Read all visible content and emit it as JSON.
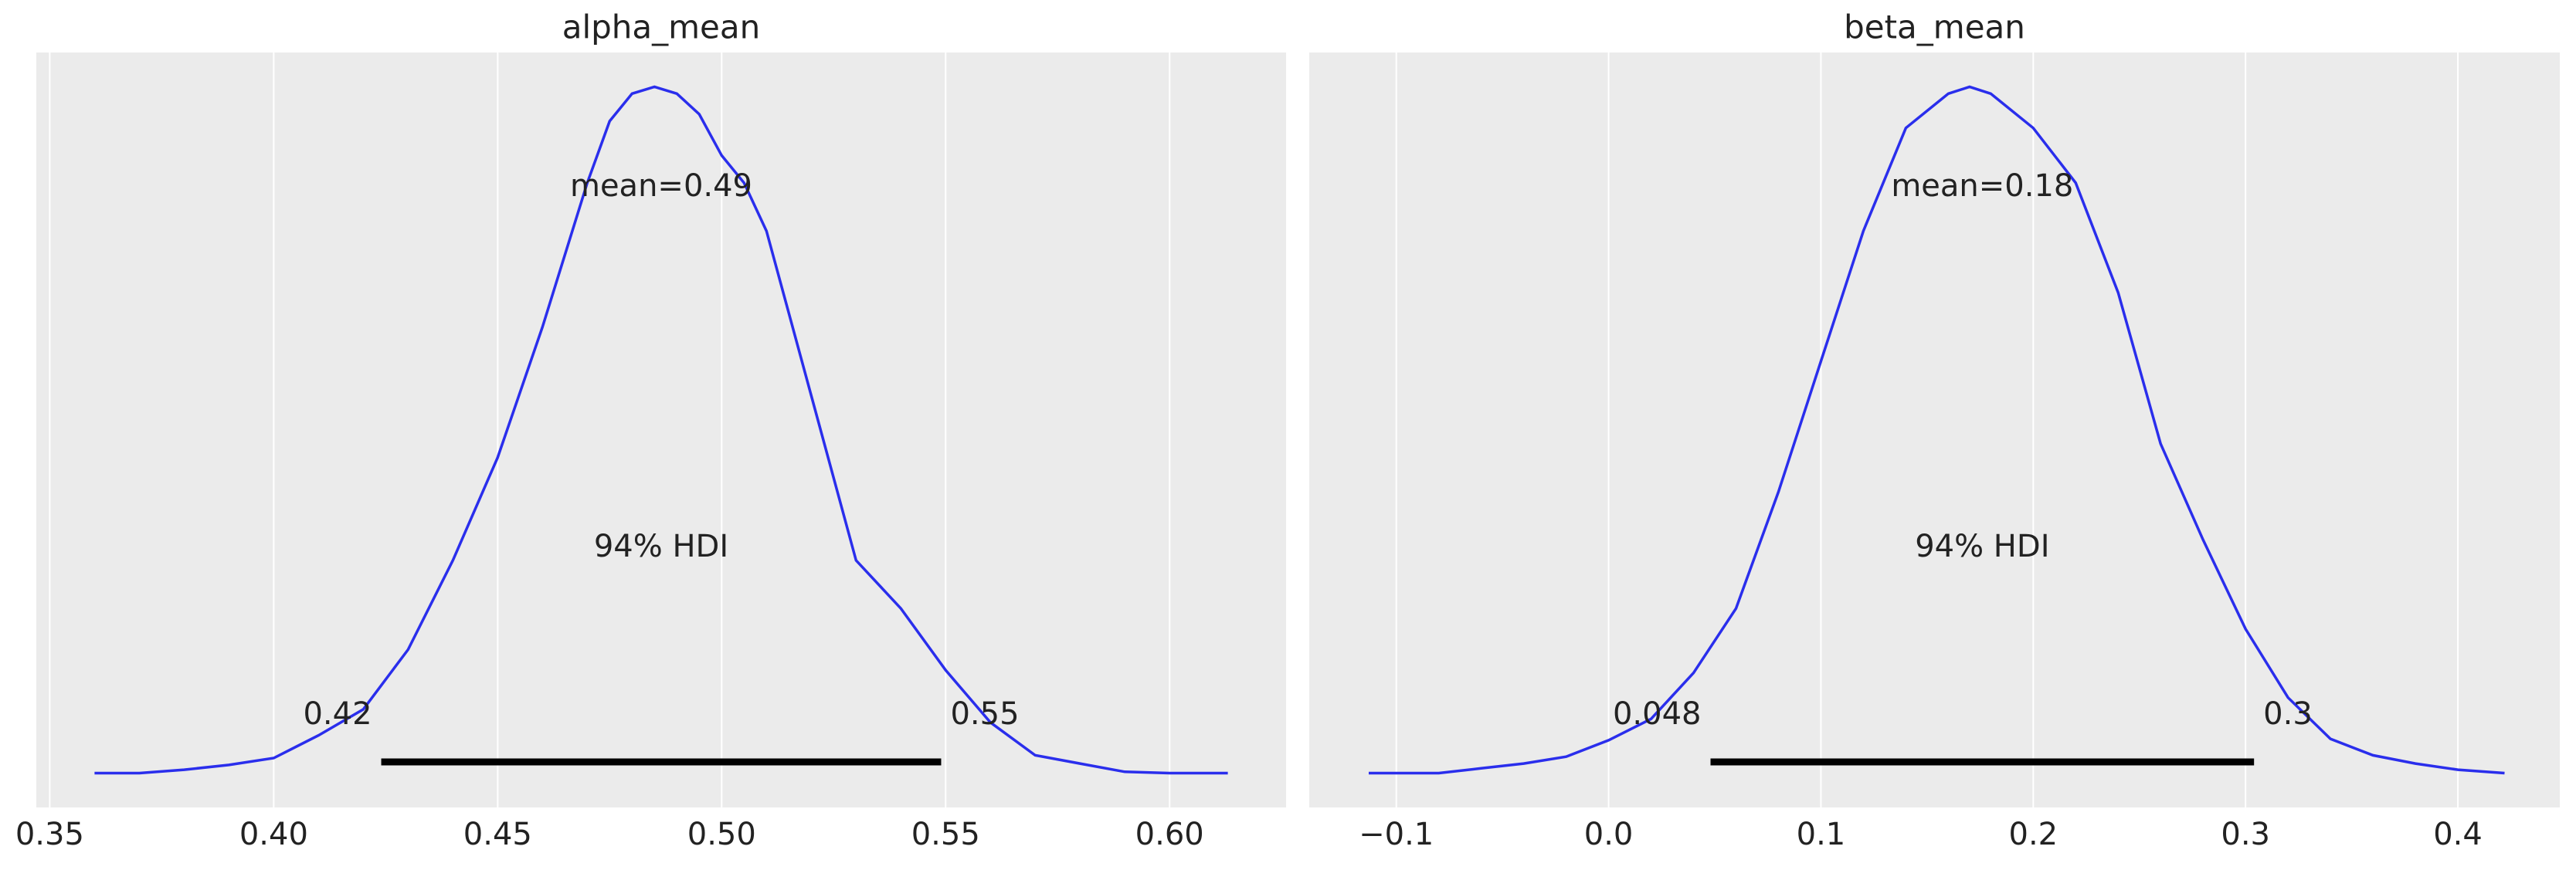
{
  "chart_data": [
    {
      "type": "density",
      "title": "alpha_mean",
      "color": "#2a2eec",
      "x": [
        0.36,
        0.37,
        0.38,
        0.39,
        0.4,
        0.41,
        0.42,
        0.43,
        0.44,
        0.45,
        0.46,
        0.47,
        0.475,
        0.48,
        0.485,
        0.49,
        0.495,
        0.5,
        0.505,
        0.51,
        0.52,
        0.53,
        0.54,
        0.55,
        0.56,
        0.57,
        0.58,
        0.59,
        0.6,
        0.613
      ],
      "values": [
        0,
        0,
        0.005,
        0.012,
        0.022,
        0.055,
        0.093,
        0.18,
        0.31,
        0.46,
        0.65,
        0.86,
        0.95,
        0.99,
        1.0,
        0.99,
        0.96,
        0.9,
        0.86,
        0.79,
        0.55,
        0.31,
        0.24,
        0.15,
        0.074,
        0.026,
        0.014,
        0.002,
        0,
        0
      ],
      "xlim": [
        0.347,
        0.626
      ],
      "ylim": [
        -0.05,
        1.05
      ],
      "xticks": [
        {
          "value": 0.35,
          "label": "0.35"
        },
        {
          "value": 0.4,
          "label": "0.40"
        },
        {
          "value": 0.45,
          "label": "0.45"
        },
        {
          "value": 0.5,
          "label": "0.50"
        },
        {
          "value": 0.55,
          "label": "0.55"
        },
        {
          "value": 0.6,
          "label": "0.60"
        }
      ],
      "grid": true,
      "mean_label": "mean=0.49",
      "hdi_label": "94% HDI",
      "hdi": [
        {
          "value": 0.424,
          "label": "0.42"
        },
        {
          "value": 0.549,
          "label": "0.55"
        }
      ]
    },
    {
      "type": "density",
      "title": "beta_mean",
      "color": "#2a2eec",
      "x": [
        -0.113,
        -0.1,
        -0.08,
        -0.06,
        -0.04,
        -0.02,
        0.0,
        0.02,
        0.04,
        0.06,
        0.08,
        0.1,
        0.12,
        0.14,
        0.16,
        0.17,
        0.18,
        0.2,
        0.22,
        0.24,
        0.26,
        0.28,
        0.3,
        0.32,
        0.34,
        0.36,
        0.38,
        0.4,
        0.422
      ],
      "values": [
        0,
        0,
        0,
        0.007,
        0.014,
        0.024,
        0.048,
        0.079,
        0.146,
        0.24,
        0.41,
        0.6,
        0.79,
        0.94,
        0.99,
        1.0,
        0.99,
        0.94,
        0.86,
        0.7,
        0.48,
        0.34,
        0.21,
        0.11,
        0.05,
        0.026,
        0.014,
        0.005,
        0
      ],
      "xlim": [
        -0.141,
        0.448
      ],
      "ylim": [
        -0.05,
        1.05
      ],
      "xticks": [
        {
          "value": -0.1,
          "label": "−0.1"
        },
        {
          "value": 0,
          "label": "0.0"
        },
        0.1,
        0.2,
        0.3,
        0.4
      ],
      "grid": true,
      "mean_label": "mean=0.18",
      "hdi_label": "94% HDI",
      "hdi": [
        {
          "value": 0.048,
          "label": "0.048"
        },
        {
          "value": 0.304,
          "label": "0.3"
        }
      ]
    }
  ]
}
